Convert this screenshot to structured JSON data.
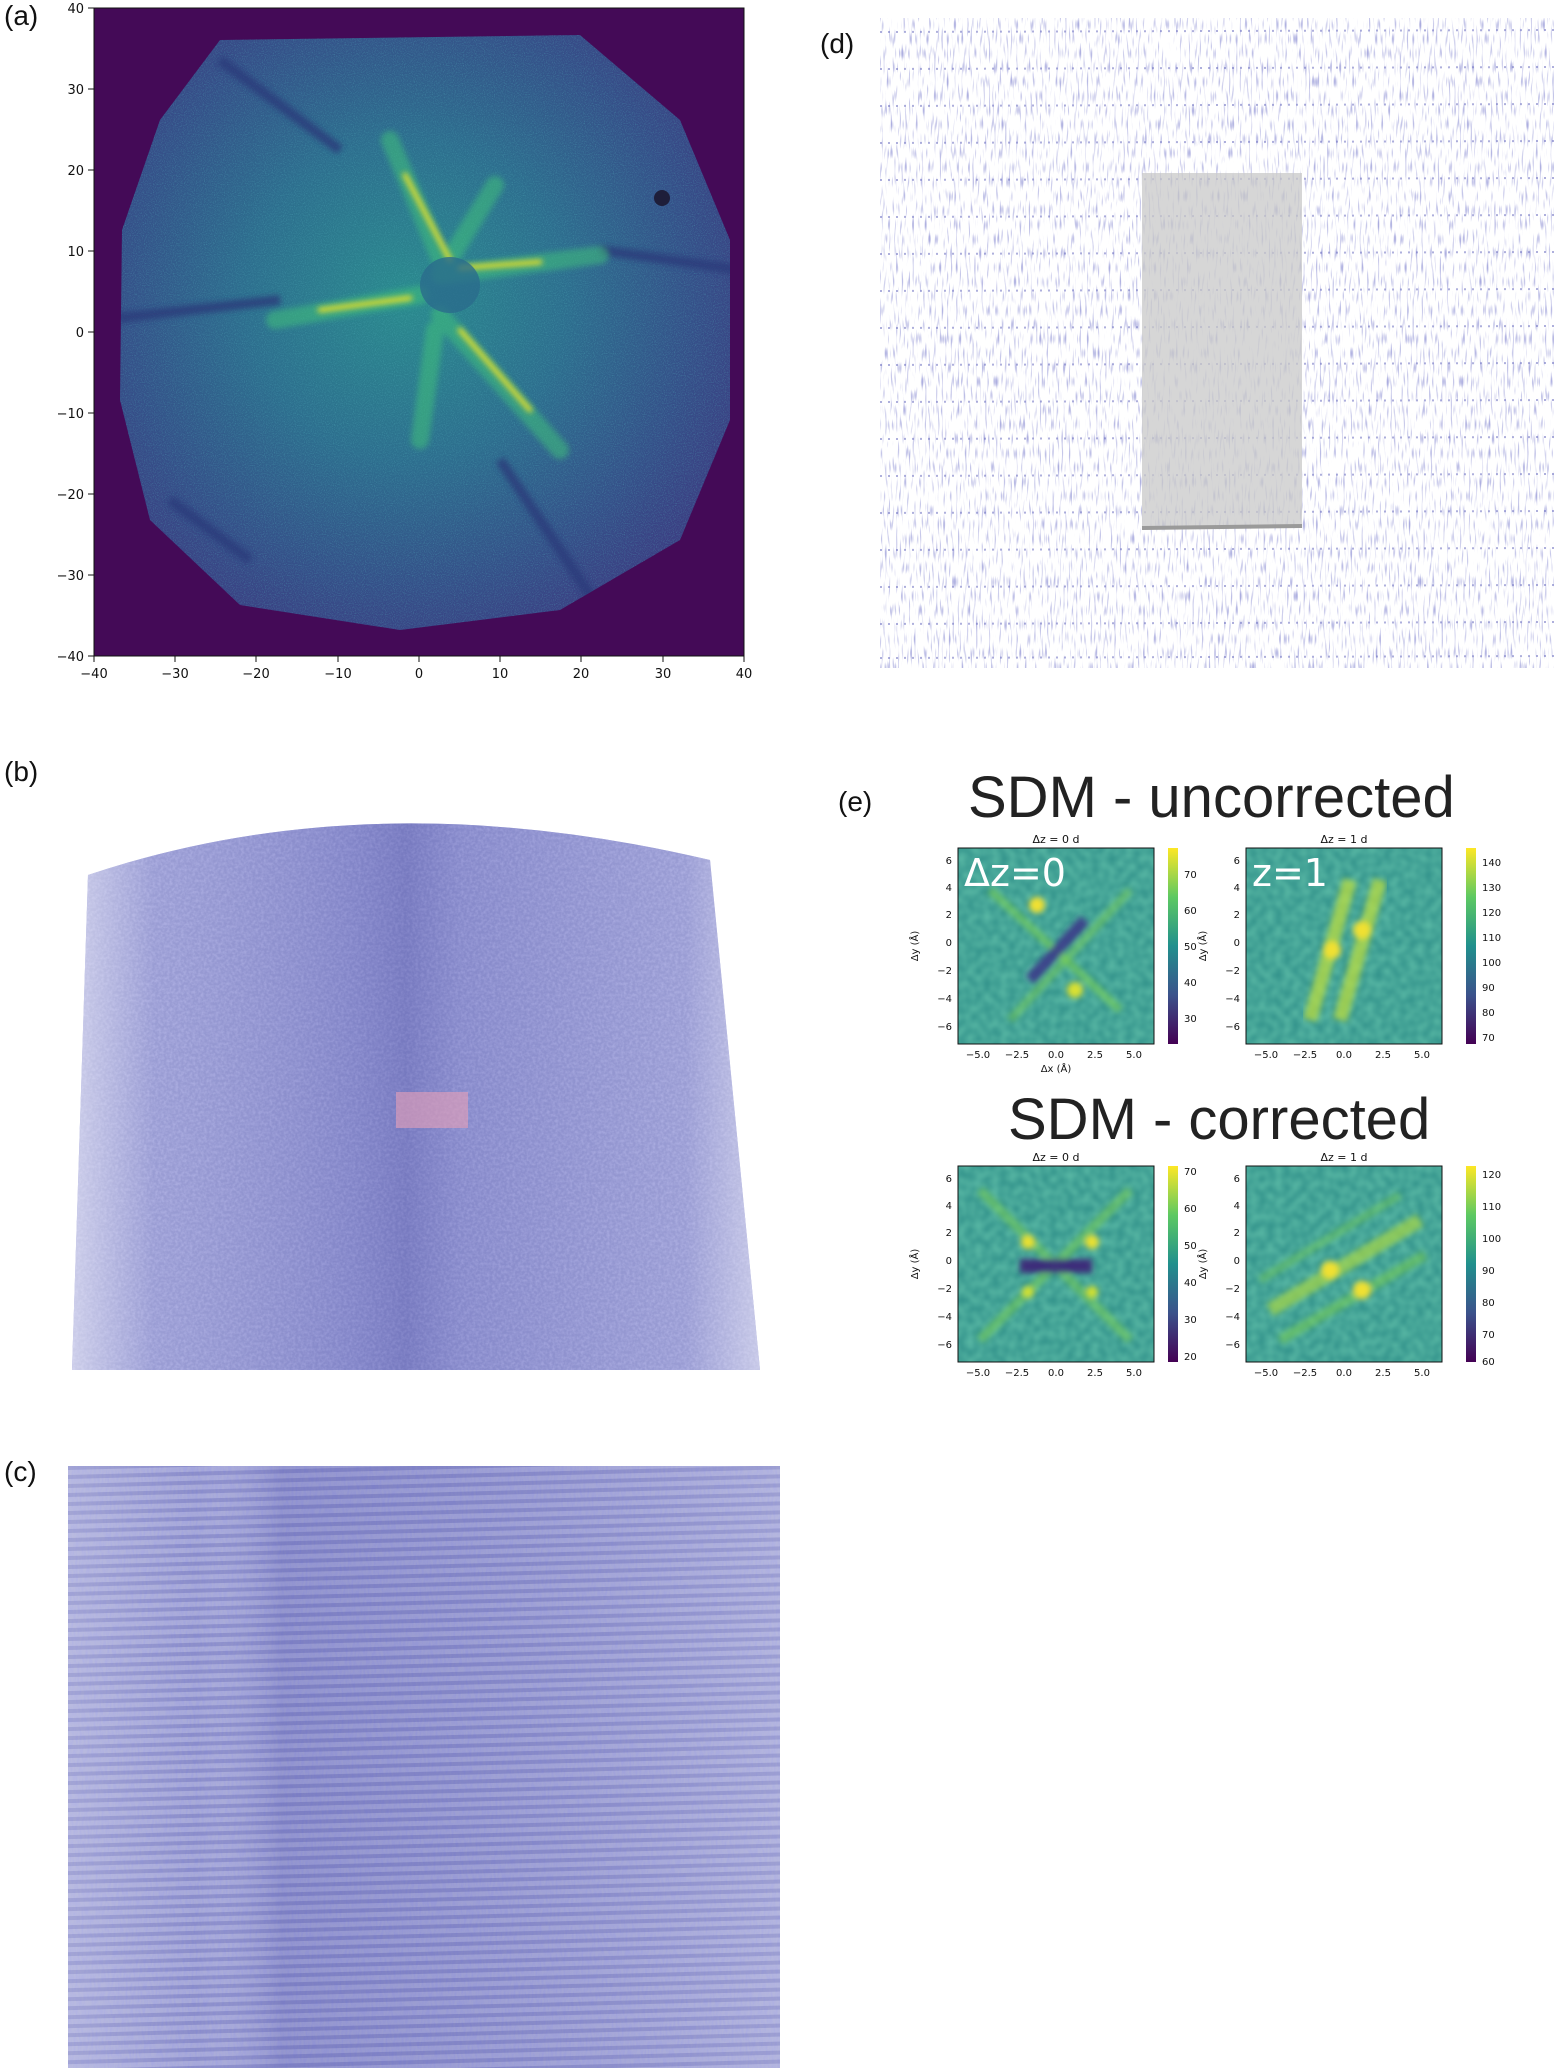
{
  "labels": {
    "a": "(a)",
    "b": "(b)",
    "c": "(c)",
    "d": "(d)",
    "e": "(e)"
  },
  "panel_a": {
    "type": "heatmap",
    "x_ticks": [
      "−40",
      "−30",
      "−20",
      "−10",
      "0",
      "10",
      "20",
      "30",
      "40"
    ],
    "y_ticks": [
      "40",
      "30",
      "20",
      "10",
      "0",
      "−10",
      "−20",
      "−30",
      "−40"
    ],
    "colors": {
      "background": "#440a57",
      "field": "#2c5d8c",
      "bright": "#f8e621",
      "mid": "#2fb47c"
    }
  },
  "panel_e": {
    "title_uncorrected": "SDM - uncorrected",
    "title_corrected": "SDM - corrected",
    "overlay_left": "Δz=0",
    "overlay_right": "z=1",
    "axis_x": "Δx (Å)",
    "axis_y": "Δy (Å)",
    "map_titles": {
      "dz0": "Δz = 0 d",
      "dz1": "Δz = 1 d"
    },
    "x_ticks": [
      "−5.0",
      "−2.5",
      "0.0",
      "2.5",
      "5.0"
    ],
    "y_ticks": [
      "6",
      "4",
      "2",
      "0",
      "−2",
      "−4",
      "−6"
    ],
    "cbar_u0": [
      "70",
      "60",
      "50",
      "40",
      "30"
    ],
    "cbar_u1": [
      "140",
      "130",
      "120",
      "110",
      "100",
      "90",
      "80",
      "70"
    ],
    "cbar_c0": [
      "70",
      "60",
      "50",
      "40",
      "30",
      "20"
    ],
    "cbar_c1": [
      "120",
      "110",
      "100",
      "90",
      "80",
      "70",
      "60"
    ]
  },
  "colors": {
    "atoms": "#5c5fb5",
    "atoms_light": "#9a9ad0",
    "roi_gray": "#c8c8c8",
    "roi_pink": "#e8a0b8"
  }
}
